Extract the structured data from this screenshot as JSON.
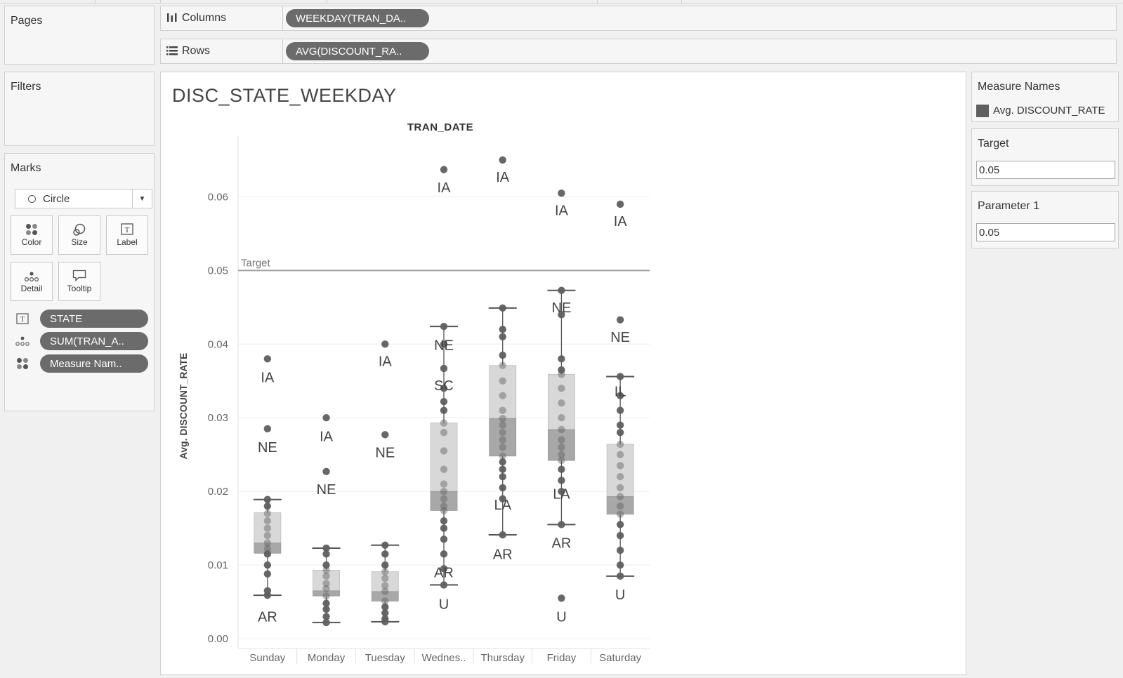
{
  "shelves": {
    "pages_label": "Pages",
    "columns_label": "Columns",
    "columns_pill": "WEEKDAY(TRAN_DA..",
    "rows_label": "Rows",
    "rows_pill": "AVG(DISCOUNT_RA.."
  },
  "filters": {
    "label": "Filters"
  },
  "marks": {
    "label": "Marks",
    "type": "Circle",
    "buttons": {
      "color": "Color",
      "size": "Size",
      "label": "Label",
      "detail": "Detail",
      "tooltip": "Tooltip"
    },
    "pills": [
      {
        "icon": "label-icon",
        "text": "STATE"
      },
      {
        "icon": "detail-icon",
        "text": "SUM(TRAN_A.."
      },
      {
        "icon": "color-icon",
        "text": "Measure Nam.."
      }
    ]
  },
  "legend": {
    "title": "Measure Names",
    "item": "Avg. DISCOUNT_RATE",
    "color": "#5f5f5f"
  },
  "parameters": [
    {
      "title": "Target",
      "value": "0.05"
    },
    {
      "title": "Parameter 1",
      "value": "0.05"
    }
  ],
  "view": {
    "title": "DISC_STATE_WEEKDAY",
    "header": "TRAN_DATE"
  },
  "chart_data": {
    "type": "scatter",
    "subtype": "box-and-whisker with jittered points",
    "categories": [
      "Sunday",
      "Monday",
      "Tuesday",
      "Wednes..",
      "Thursday",
      "Friday",
      "Saturday"
    ],
    "xlabel": "",
    "ylabel": "Avg. DISCOUNT_RATE",
    "ylim": [
      0,
      0.067
    ],
    "yticks": [
      "0.00",
      "0.01",
      "0.02",
      "0.03",
      "0.04",
      "0.05",
      "0.06"
    ],
    "reference_line": {
      "label": "Target",
      "value": 0.05
    },
    "grid": true,
    "colors": {
      "point": "#5f5f5f",
      "box_upper": "#d8d8d8",
      "box_lower": "#a8a8a8",
      "whisker": "#555555",
      "target": "#a0a0a0"
    },
    "boxes": [
      {
        "category": "Sunday",
        "lower_whisker": 0.0059,
        "q1": 0.0116,
        "median": 0.013,
        "q3": 0.0171,
        "upper_whisker": 0.0189
      },
      {
        "category": "Monday",
        "lower_whisker": 0.0022,
        "q1": 0.0058,
        "median": 0.0065,
        "q3": 0.0093,
        "upper_whisker": 0.0123
      },
      {
        "category": "Tuesday",
        "lower_whisker": 0.0023,
        "q1": 0.0051,
        "median": 0.0064,
        "q3": 0.0091,
        "upper_whisker": 0.0127
      },
      {
        "category": "Wednes..",
        "lower_whisker": 0.0073,
        "q1": 0.0174,
        "median": 0.02,
        "q3": 0.0293,
        "upper_whisker": 0.0424
      },
      {
        "category": "Thursday",
        "lower_whisker": 0.0141,
        "q1": 0.0248,
        "median": 0.0299,
        "q3": 0.0371,
        "upper_whisker": 0.0449
      },
      {
        "category": "Friday",
        "lower_whisker": 0.0155,
        "q1": 0.0242,
        "median": 0.0284,
        "q3": 0.0359,
        "upper_whisker": 0.0473
      },
      {
        "category": "Saturday",
        "lower_whisker": 0.0085,
        "q1": 0.0169,
        "median": 0.0193,
        "q3": 0.0264,
        "upper_whisker": 0.0356
      }
    ],
    "points": [
      [
        0.038,
        0.0285,
        0.0189,
        0.018,
        0.017,
        0.016,
        0.015,
        0.014,
        0.013,
        0.0122,
        0.0115,
        0.01,
        0.0088,
        0.0065,
        0.0059
      ],
      [
        0.03,
        0.0227,
        0.0123,
        0.0115,
        0.01,
        0.0093,
        0.0085,
        0.0075,
        0.0068,
        0.0058,
        0.0048,
        0.004,
        0.003,
        0.0022
      ],
      [
        0.04,
        0.0277,
        0.0127,
        0.0115,
        0.01,
        0.0091,
        0.0082,
        0.0072,
        0.0064,
        0.0051,
        0.0043,
        0.0035,
        0.0027,
        0.0023
      ],
      [
        0.0637,
        0.0424,
        0.04,
        0.0367,
        0.034,
        0.0322,
        0.031,
        0.0293,
        0.028,
        0.0255,
        0.023,
        0.021,
        0.02,
        0.019,
        0.018,
        0.0174,
        0.016,
        0.015,
        0.0135,
        0.0115,
        0.0095,
        0.0073
      ],
      [
        0.065,
        0.0449,
        0.042,
        0.041,
        0.0385,
        0.0371,
        0.035,
        0.033,
        0.031,
        0.0299,
        0.029,
        0.028,
        0.027,
        0.026,
        0.0248,
        0.024,
        0.023,
        0.022,
        0.0205,
        0.019,
        0.0141
      ],
      [
        0.0605,
        0.0473,
        0.044,
        0.038,
        0.0365,
        0.0359,
        0.034,
        0.032,
        0.03,
        0.0284,
        0.027,
        0.026,
        0.025,
        0.0242,
        0.023,
        0.0215,
        0.02,
        0.0155,
        0.0055
      ],
      [
        0.059,
        0.0433,
        0.0356,
        0.033,
        0.031,
        0.029,
        0.028,
        0.0264,
        0.025,
        0.0235,
        0.022,
        0.0205,
        0.0193,
        0.018,
        0.0169,
        0.0155,
        0.014,
        0.012,
        0.01,
        0.0085
      ]
    ],
    "labels": [
      {
        "category": "Sunday",
        "text": "IA",
        "y": 0.0355
      },
      {
        "category": "Sunday",
        "text": "NE",
        "y": 0.026
      },
      {
        "category": "Sunday",
        "text": "AR",
        "y": 0.003
      },
      {
        "category": "Monday",
        "text": "IA",
        "y": 0.0275
      },
      {
        "category": "Monday",
        "text": "NE",
        "y": 0.0203
      },
      {
        "category": "Tuesday",
        "text": "IA",
        "y": 0.0377
      },
      {
        "category": "Tuesday",
        "text": "NE",
        "y": 0.0253
      },
      {
        "category": "Wednes..",
        "text": "IA",
        "y": 0.0613
      },
      {
        "category": "Wednes..",
        "text": "NE",
        "y": 0.0399
      },
      {
        "category": "Wednes..",
        "text": "SC",
        "y": 0.0344
      },
      {
        "category": "Wednes..",
        "text": "AR",
        "y": 0.009
      },
      {
        "category": "Wednes..",
        "text": "U",
        "y": 0.0047
      },
      {
        "category": "Thursday",
        "text": "IA",
        "y": 0.0627
      },
      {
        "category": "Thursday",
        "text": "LA",
        "y": 0.0182
      },
      {
        "category": "Thursday",
        "text": "AR",
        "y": 0.0115
      },
      {
        "category": "Friday",
        "text": "IA",
        "y": 0.0582
      },
      {
        "category": "Friday",
        "text": "NE",
        "y": 0.045
      },
      {
        "category": "Friday",
        "text": "LA",
        "y": 0.0197
      },
      {
        "category": "Friday",
        "text": "AR",
        "y": 0.013
      },
      {
        "category": "Friday",
        "text": "U",
        "y": 0.003
      },
      {
        "category": "Saturday",
        "text": "IA",
        "y": 0.0567
      },
      {
        "category": "Saturday",
        "text": "NE",
        "y": 0.041
      },
      {
        "category": "Saturday",
        "text": "IL",
        "y": 0.0336
      },
      {
        "category": "Saturday",
        "text": "U",
        "y": 0.006
      }
    ]
  }
}
